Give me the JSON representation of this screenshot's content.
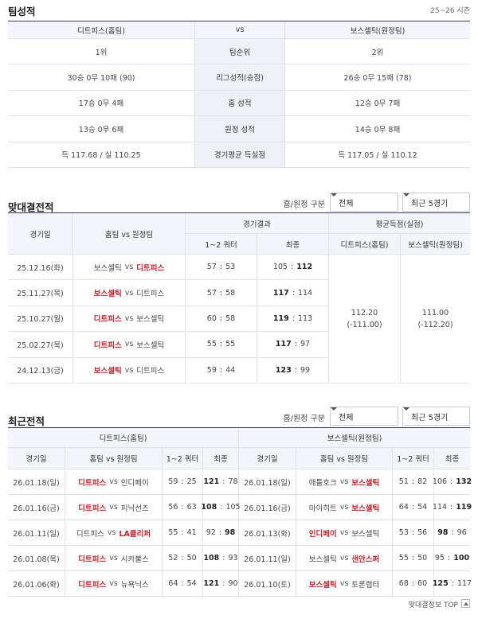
{
  "team_stats": {
    "title": "팀성적",
    "season": "25~26 시즌",
    "header": [
      "디트피스(홈팀)",
      "vs",
      "보스셀틱(원정팀)"
    ],
    "rows": [
      [
        "1위",
        "팀순위",
        "2위"
      ],
      [
        "30승 0무 10패 (90)",
        "리그성적(승점)",
        "26승 0무 15패 (78)"
      ],
      [
        "17승 0무 4패",
        "홈 성적",
        "12승 0무 7패"
      ],
      [
        "13승 0무 6패",
        "원정 성적",
        "14승 0무 8패"
      ],
      [
        "득 117.68 / 실 110.25",
        "경기평균 득실점",
        "득 117.05 / 실 110.12"
      ]
    ]
  },
  "vs": "vs",
  "separator": ":",
  "head_to_head": {
    "title": "맞대결전적",
    "filter_label": "홈/원정 구분",
    "filters": [
      "전체",
      "최근 5경기"
    ],
    "columns": {
      "date": "경기일",
      "teams": "홈팀 vs 원정팀",
      "result": "경기결과",
      "half": "1~2 쿼터",
      "final": "최종",
      "average": "평균득점(실점)",
      "home_avg": "디트피스(홈팀)",
      "away_avg": "보스셀틱(원정팀)"
    },
    "games": [
      {
        "date": "25.12.16(화)",
        "home": "보스셀틱",
        "away": "디트피스",
        "half": [
          57,
          53
        ],
        "final": [
          105,
          112
        ]
      },
      {
        "date": "25.11.27(목)",
        "home": "보스셀틱",
        "away": "디트피스",
        "half": [
          57,
          58
        ],
        "final": [
          117,
          114
        ]
      },
      {
        "date": "25.10.27(월)",
        "home": "디트피스",
        "away": "보스셀틱",
        "half": [
          60,
          58
        ],
        "final": [
          119,
          113
        ]
      },
      {
        "date": "25.02.27(목)",
        "home": "디트피스",
        "away": "보스셀틱",
        "half": [
          55,
          55
        ],
        "final": [
          117,
          97
        ]
      },
      {
        "date": "24.12.13(금)",
        "home": "보스셀틱",
        "away": "디트피스",
        "half": [
          59,
          44
        ],
        "final": [
          123,
          99
        ]
      }
    ],
    "average": {
      "home": [
        "112.20",
        "(-111.00)"
      ],
      "away": [
        "111.00",
        "(-112.20)"
      ]
    }
  },
  "recent": {
    "title": "최근전적",
    "filter_label": "홈/원정 구분",
    "filters": [
      "전체",
      "최근 5경기"
    ],
    "columns": {
      "date": "경기일",
      "teams": "홈팀 vs 원정팀",
      "half": "1~2 쿼터",
      "final": "최종"
    },
    "home_team": {
      "title": "디트피스(홈팀)",
      "games": [
        {
          "date": "26.01.18(일)",
          "home": "디트피스",
          "away": "인디페이",
          "half": [
            59,
            25
          ],
          "final": [
            121,
            78
          ]
        },
        {
          "date": "26.01.16(금)",
          "home": "디트피스",
          "away": "피닉선즈",
          "half": [
            56,
            63
          ],
          "final": [
            108,
            105
          ]
        },
        {
          "date": "26.01.11(일)",
          "home": "디트피스",
          "away": "LA클리퍼",
          "half": [
            55,
            41
          ],
          "final": [
            92,
            98
          ]
        },
        {
          "date": "26.01.08(목)",
          "home": "디트피스",
          "away": "시카불스",
          "half": [
            52,
            50
          ],
          "final": [
            108,
            93
          ]
        },
        {
          "date": "26.01.06(화)",
          "home": "디트피스",
          "away": "뉴욕닉스",
          "half": [
            64,
            54
          ],
          "final": [
            121,
            90
          ]
        }
      ]
    },
    "away_team": {
      "title": "보스셀틱(원정팀)",
      "games": [
        {
          "date": "26.01.18(일)",
          "home": "애틀호크",
          "away": "보스셀틱",
          "half": [
            51,
            82
          ],
          "final": [
            106,
            132
          ]
        },
        {
          "date": "26.01.16(금)",
          "home": "마이히트",
          "away": "보스셀틱",
          "half": [
            64,
            54
          ],
          "final": [
            114,
            119
          ]
        },
        {
          "date": "26.01.13(화)",
          "home": "인디페이",
          "away": "보스셀틱",
          "half": [
            53,
            56
          ],
          "final": [
            98,
            96
          ]
        },
        {
          "date": "26.01.11(일)",
          "home": "보스셀틱",
          "away": "샌안스퍼",
          "half": [
            55,
            50
          ],
          "final": [
            95,
            100
          ]
        },
        {
          "date": "26.01.10(토)",
          "home": "보스셀틱",
          "away": "토론랩터",
          "half": [
            68,
            60
          ],
          "final": [
            125,
            117
          ]
        }
      ]
    }
  },
  "footer": "맞대결정보 TOP"
}
